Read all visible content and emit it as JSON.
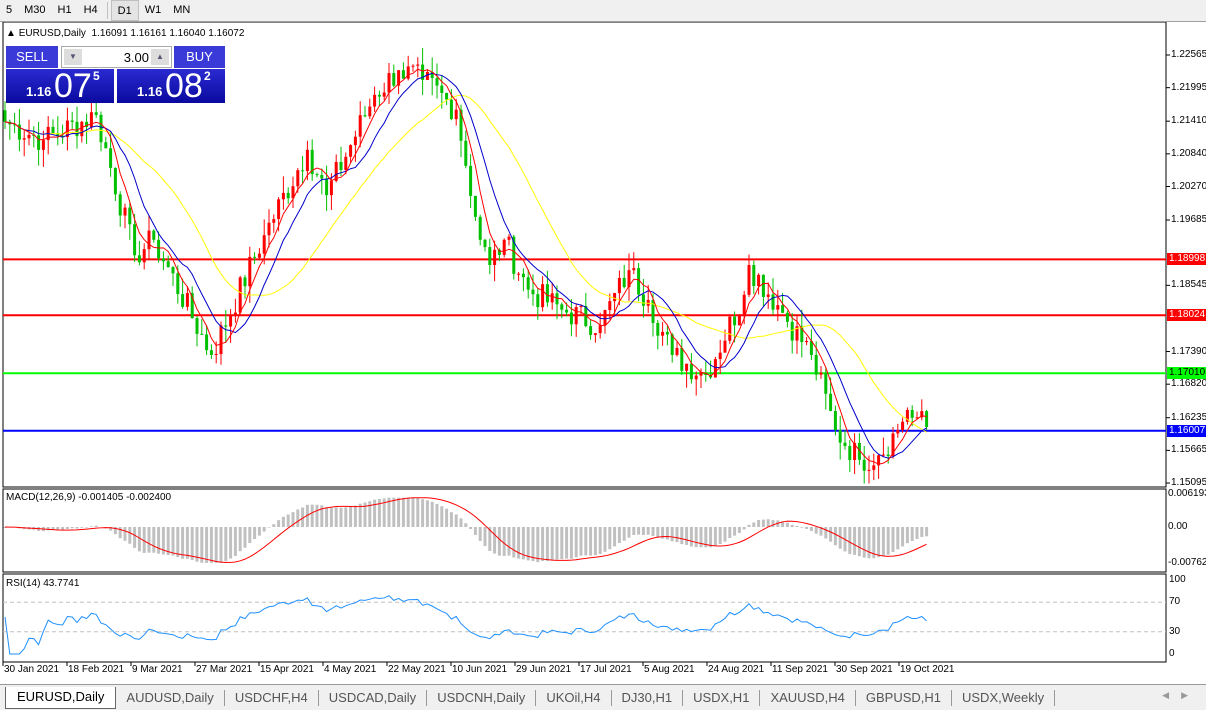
{
  "toolbar": {
    "timeframes": [
      "5",
      "M30",
      "H1",
      "H4",
      "D1",
      "W1",
      "MN"
    ],
    "active": "D1"
  },
  "header": {
    "symbol": "EURUSD,Daily",
    "ohlc": "1.16091 1.16161 1.16040 1.16072"
  },
  "trade_panel": {
    "sell_label": "SELL",
    "buy_label": "BUY",
    "lot": "3.00",
    "sell_price": {
      "prefix": "1.16",
      "big": "07",
      "small": "5"
    },
    "buy_price": {
      "prefix": "1.16",
      "big": "08",
      "small": "2"
    }
  },
  "colors": {
    "bull": "#ff0000",
    "bear": "#00c000",
    "ma_fast": "#ff0000",
    "ma_mid": "#0000cc",
    "ma_slow": "#ffff00",
    "macd_hist": "#c0c0c0",
    "macd_signal": "#ff0000",
    "rsi": "#1e90ff"
  },
  "chart_data": [
    {
      "type": "candlestick",
      "symbol": "EURUSD",
      "timeframe": "Daily",
      "price_ticks": [
        "1.22565",
        "1.21995",
        "1.21410",
        "1.20840",
        "1.20270",
        "1.19685",
        "1.18545",
        "1.17390",
        "1.16820",
        "1.16235",
        "1.15665",
        "1.15095"
      ],
      "ylim": [
        1.15095,
        1.22565
      ],
      "time_ticks": [
        "30 Jan 2021",
        "18 Feb 2021",
        "9 Mar 2021",
        "27 Mar 2021",
        "15 Apr 2021",
        "4 May 2021",
        "22 May 2021",
        "10 Jun 2021",
        "29 Jun 2021",
        "17 Jul 2021",
        "5 Aug 2021",
        "24 Aug 2021",
        "11 Sep 2021",
        "30 Sep 2021",
        "19 Oct 2021"
      ],
      "close_anchors": [
        [
          "2021-01-29",
          1.214
        ],
        [
          "2021-02-10",
          1.2108
        ],
        [
          "2021-02-25",
          1.2152
        ],
        [
          "2021-03-09",
          1.1907
        ],
        [
          "2021-03-15",
          1.1934
        ],
        [
          "2021-03-31",
          1.1733
        ],
        [
          "2021-04-15",
          1.1942
        ],
        [
          "2021-04-28",
          1.2091
        ],
        [
          "2021-05-04",
          1.2012
        ],
        [
          "2021-05-18",
          1.2187
        ],
        [
          "2021-05-25",
          1.223
        ],
        [
          "2021-06-01",
          1.2213
        ],
        [
          "2021-06-10",
          1.2161
        ],
        [
          "2021-06-17",
          1.1934
        ],
        [
          "2021-06-21",
          1.189
        ],
        [
          "2021-06-24",
          1.1934
        ],
        [
          "2021-07-01",
          1.1847
        ],
        [
          "2021-07-12",
          1.1812
        ],
        [
          "2021-07-22",
          1.1785
        ],
        [
          "2021-07-30",
          1.1881
        ],
        [
          "2021-08-05",
          1.1829
        ],
        [
          "2021-08-12",
          1.1733
        ],
        [
          "2021-08-23",
          1.1698
        ],
        [
          "2021-09-02",
          1.1838
        ],
        [
          "2021-09-03",
          1.189
        ],
        [
          "2021-09-13",
          1.182
        ],
        [
          "2021-09-22",
          1.1733
        ],
        [
          "2021-09-29",
          1.1602
        ],
        [
          "2021-10-06",
          1.155
        ],
        [
          "2021-10-12",
          1.1558
        ],
        [
          "2021-10-18",
          1.1602
        ],
        [
          "2021-10-20",
          1.1637
        ],
        [
          "2021-10-26",
          1.16072
        ]
      ],
      "levels": [
        {
          "price": "1.18998",
          "color": "#ff0000"
        },
        {
          "price": "1.18024",
          "color": "#ff0000"
        },
        {
          "price": "1.17010",
          "color": "#00ff00"
        },
        {
          "price": "1.16007",
          "color": "#0000ff"
        }
      ]
    },
    {
      "type": "bar",
      "name": "MACD(12,26,9)",
      "label": "MACD(12,26,9) -0.001405 -0.002400",
      "ticks": [
        "0.006193",
        "0.00",
        "-0.00762"
      ],
      "ylim": [
        -0.00762,
        0.006193
      ]
    },
    {
      "type": "line",
      "name": "RSI(14)",
      "label": "RSI(14) 43.7741",
      "ticks": [
        "100",
        "70",
        "30",
        "0"
      ],
      "ylim": [
        0,
        100
      ],
      "levels": [
        70,
        30
      ]
    }
  ],
  "tabs": [
    "EURUSD,Daily",
    "AUDUSD,Daily",
    "USDCHF,H4",
    "USDCAD,Daily",
    "USDCNH,Daily",
    "UKOil,H4",
    "DJ30,H1",
    "USDX,H1",
    "XAUUSD,H4",
    "GBPUSD,H1",
    "USDX,Weekly"
  ],
  "scroll": {
    "left": "◀",
    "right": "▶"
  }
}
